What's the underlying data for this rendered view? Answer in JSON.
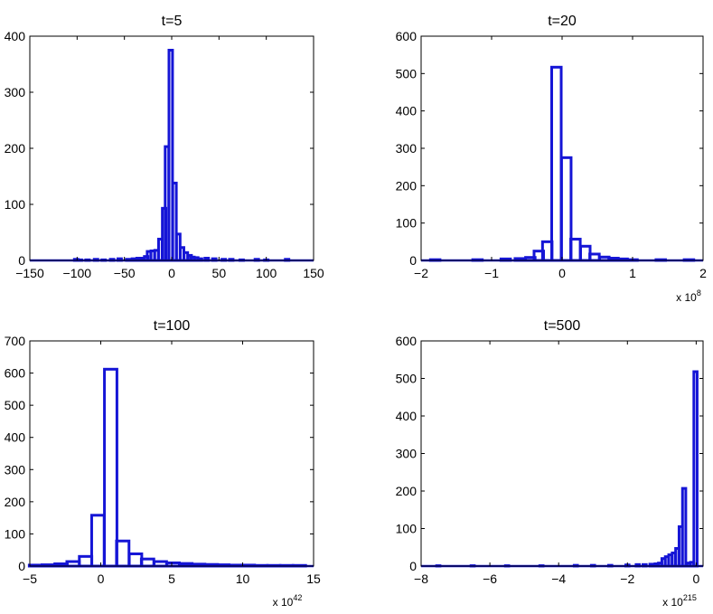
{
  "style": {
    "bar_color": "#1515d6",
    "axis_color": "#000000",
    "background": "#ffffff"
  },
  "chart_data": [
    {
      "type": "bar",
      "title": "t=5",
      "xlim": [
        -150,
        150
      ],
      "ylim": [
        0,
        400
      ],
      "xticks": [
        "−150",
        "−100",
        "−50",
        "0",
        "50",
        "100",
        "150"
      ],
      "yticks": [
        "0",
        "100",
        "200",
        "300",
        "400"
      ],
      "x_multiplier": {
        "base": "",
        "exponent": ""
      },
      "bin_width": 3.75,
      "bins": [
        {
          "x": -101,
          "y": 2
        },
        {
          "x": -97,
          "y": 1
        },
        {
          "x": -89,
          "y": 1
        },
        {
          "x": -80,
          "y": 2
        },
        {
          "x": -72,
          "y": 1
        },
        {
          "x": -63,
          "y": 2
        },
        {
          "x": -55,
          "y": 3
        },
        {
          "x": -46,
          "y": 2
        },
        {
          "x": -40,
          "y": 3
        },
        {
          "x": -35,
          "y": 4
        },
        {
          "x": -31,
          "y": 4
        },
        {
          "x": -27,
          "y": 7
        },
        {
          "x": -24,
          "y": 16
        },
        {
          "x": -20,
          "y": 17
        },
        {
          "x": -16,
          "y": 18
        },
        {
          "x": -12,
          "y": 38
        },
        {
          "x": -8,
          "y": 93
        },
        {
          "x": -5,
          "y": 203
        },
        {
          "x": -1,
          "y": 375
        },
        {
          "x": 3,
          "y": 138
        },
        {
          "x": 7,
          "y": 47
        },
        {
          "x": 11,
          "y": 23
        },
        {
          "x": 15,
          "y": 14
        },
        {
          "x": 19,
          "y": 9
        },
        {
          "x": 22,
          "y": 6
        },
        {
          "x": 26,
          "y": 5
        },
        {
          "x": 30,
          "y": 3
        },
        {
          "x": 37,
          "y": 4
        },
        {
          "x": 45,
          "y": 3
        },
        {
          "x": 55,
          "y": 2
        },
        {
          "x": 63,
          "y": 2
        },
        {
          "x": 74,
          "y": 1
        },
        {
          "x": 90,
          "y": 2
        },
        {
          "x": 100,
          "y": 1
        },
        {
          "x": 122,
          "y": 2
        }
      ]
    },
    {
      "type": "bar",
      "title": "t=20",
      "xlim": [
        -2,
        2
      ],
      "ylim": [
        0,
        600
      ],
      "xticks": [
        "−2",
        "−1",
        "0",
        "1",
        "2"
      ],
      "yticks": [
        "0",
        "100",
        "200",
        "300",
        "400",
        "500",
        "600"
      ],
      "x_multiplier": {
        "base": "x 10",
        "exponent": "8"
      },
      "bin_width": 0.135,
      "bins": [
        {
          "x": -1.8,
          "y": 2
        },
        {
          "x": -1.2,
          "y": 2
        },
        {
          "x": -0.8,
          "y": 4
        },
        {
          "x": -0.6,
          "y": 5
        },
        {
          "x": -0.45,
          "y": 8
        },
        {
          "x": -0.33,
          "y": 25
        },
        {
          "x": -0.21,
          "y": 50
        },
        {
          "x": -0.08,
          "y": 517
        },
        {
          "x": 0.06,
          "y": 275
        },
        {
          "x": 0.19,
          "y": 57
        },
        {
          "x": 0.33,
          "y": 38
        },
        {
          "x": 0.46,
          "y": 17
        },
        {
          "x": 0.6,
          "y": 9
        },
        {
          "x": 0.73,
          "y": 6
        },
        {
          "x": 0.86,
          "y": 4
        },
        {
          "x": 1.0,
          "y": 2
        },
        {
          "x": 1.4,
          "y": 2
        },
        {
          "x": 1.8,
          "y": 2
        }
      ]
    },
    {
      "type": "bar",
      "title": "t=100",
      "xlim": [
        -5,
        15
      ],
      "ylim": [
        0,
        700
      ],
      "xticks": [
        "−5",
        "0",
        "5",
        "10",
        "15"
      ],
      "yticks": [
        "0",
        "100",
        "200",
        "300",
        "400",
        "500",
        "600",
        "700"
      ],
      "x_multiplier": {
        "base": "x 10",
        "exponent": "42"
      },
      "bin_width": 0.88,
      "bins": [
        {
          "x": -4.6,
          "y": 3
        },
        {
          "x": -3.7,
          "y": 4
        },
        {
          "x": -2.8,
          "y": 7
        },
        {
          "x": -1.95,
          "y": 14
        },
        {
          "x": -1.07,
          "y": 30
        },
        {
          "x": -0.2,
          "y": 158
        },
        {
          "x": 0.7,
          "y": 612
        },
        {
          "x": 1.55,
          "y": 78
        },
        {
          "x": 2.45,
          "y": 38
        },
        {
          "x": 3.3,
          "y": 22
        },
        {
          "x": 4.2,
          "y": 14
        },
        {
          "x": 5.1,
          "y": 10
        },
        {
          "x": 6.0,
          "y": 8
        },
        {
          "x": 6.9,
          "y": 6
        },
        {
          "x": 7.8,
          "y": 5
        },
        {
          "x": 8.6,
          "y": 4
        },
        {
          "x": 9.5,
          "y": 3
        },
        {
          "x": 10.4,
          "y": 3
        },
        {
          "x": 11.3,
          "y": 2
        },
        {
          "x": 12.2,
          "y": 2
        },
        {
          "x": 13.1,
          "y": 2
        },
        {
          "x": 14.0,
          "y": 2
        }
      ]
    },
    {
      "type": "bar",
      "title": "t=500",
      "xlim": [
        -8,
        0.2
      ],
      "ylim": [
        0,
        600
      ],
      "xticks": [
        "−8",
        "−6",
        "−4",
        "−2",
        "0"
      ],
      "yticks": [
        "0",
        "100",
        "200",
        "300",
        "400",
        "500",
        "600"
      ],
      "x_multiplier": {
        "base": "x 10",
        "exponent": "215"
      },
      "bin_width": 0.095,
      "bins": [
        {
          "x": -7.5,
          "y": 1
        },
        {
          "x": -6.5,
          "y": 1
        },
        {
          "x": -5.5,
          "y": 1
        },
        {
          "x": -4.5,
          "y": 1
        },
        {
          "x": -3.5,
          "y": 2
        },
        {
          "x": -3.0,
          "y": 2
        },
        {
          "x": -2.5,
          "y": 2
        },
        {
          "x": -2.0,
          "y": 3
        },
        {
          "x": -1.7,
          "y": 4
        },
        {
          "x": -1.5,
          "y": 4
        },
        {
          "x": -1.3,
          "y": 5
        },
        {
          "x": -1.15,
          "y": 6
        },
        {
          "x": -1.05,
          "y": 8
        },
        {
          "x": -0.95,
          "y": 20
        },
        {
          "x": -0.85,
          "y": 25
        },
        {
          "x": -0.75,
          "y": 30
        },
        {
          "x": -0.65,
          "y": 35
        },
        {
          "x": -0.55,
          "y": 47
        },
        {
          "x": -0.45,
          "y": 105
        },
        {
          "x": -0.35,
          "y": 207
        },
        {
          "x": -0.22,
          "y": 8
        },
        {
          "x": -0.12,
          "y": 10
        },
        {
          "x": -0.02,
          "y": 518
        }
      ]
    }
  ]
}
